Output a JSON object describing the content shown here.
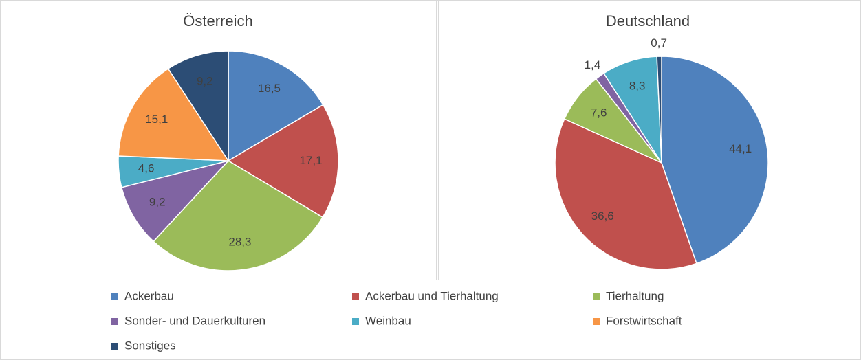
{
  "chart_data": [
    {
      "type": "pie",
      "title": "Österreich",
      "categories": [
        "Ackerbau",
        "Ackerbau und Tierhaltung",
        "Tierhaltung",
        "Sonder- und Dauerkulturen",
        "Weinbau",
        "Forstwirtschaft",
        "Sonstiges"
      ],
      "values": [
        16.5,
        17.1,
        28.3,
        9.2,
        4.6,
        15.1,
        9.2
      ],
      "value_labels": [
        "16,5",
        "17,1",
        "28,3",
        "9,2",
        "4,6",
        "15,1",
        "9,2"
      ],
      "colors": [
        "#4f81bd",
        "#c0504d",
        "#9bbb59",
        "#8064a2",
        "#4bacc6",
        "#f79646",
        "#2c4d75"
      ]
    },
    {
      "type": "pie",
      "title": "Deutschland",
      "categories": [
        "Ackerbau",
        "Ackerbau und Tierhaltung",
        "Tierhaltung",
        "Sonder- und Dauerkulturen",
        "Weinbau",
        "Forstwirtschaft",
        "Sonstiges"
      ],
      "values": [
        44.1,
        36.6,
        7.6,
        1.4,
        8.3,
        null,
        0.7
      ],
      "value_labels": [
        "44,1",
        "36,6",
        "7,6",
        "1,4",
        "8,3",
        null,
        "0,7"
      ],
      "colors": [
        "#4f81bd",
        "#c0504d",
        "#9bbb59",
        "#8064a2",
        "#4bacc6",
        "#f79646",
        "#2c4d75"
      ]
    }
  ]
}
